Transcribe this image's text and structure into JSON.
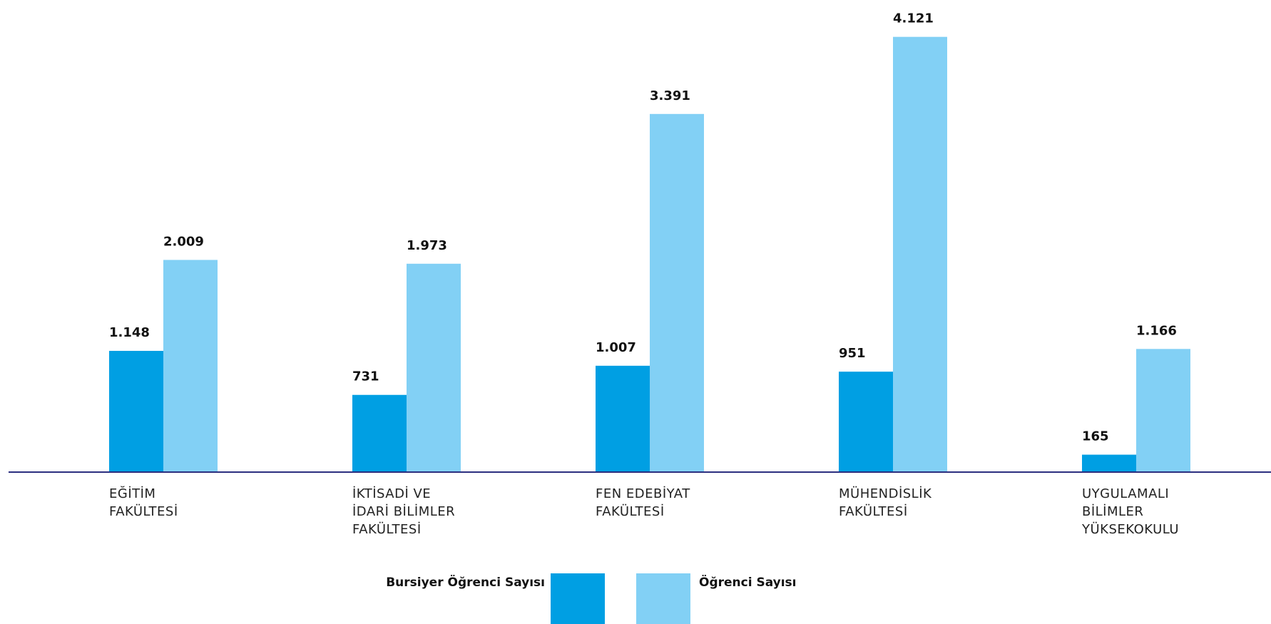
{
  "chart_data": {
    "type": "bar",
    "categories": [
      [
        "EĞİTİM",
        "FAKÜLTESİ"
      ],
      [
        "İKTİSADİ VE",
        "İDARİ BİLİMLER",
        "FAKÜLTESİ"
      ],
      [
        "FEN EDEBİYAT",
        "FAKÜLTESİ"
      ],
      [
        "MÜHENDİSLİK",
        "FAKÜLTESİ"
      ],
      [
        "UYGULAMALI",
        "BİLİMLER",
        "YÜKSEKOKULU"
      ]
    ],
    "series": [
      {
        "name": "Bursiyer Öğrenci Sayısı",
        "color": "#009FE3",
        "values": [
          1148,
          731,
          1007,
          951,
          165
        ],
        "labels": [
          "1.148",
          "731",
          "1.007",
          "951",
          "165"
        ]
      },
      {
        "name": "Öğrenci Sayısı",
        "color": "#82D0F5",
        "values": [
          2009,
          1973,
          3391,
          4121,
          1166
        ],
        "labels": [
          "2.009",
          "1.973",
          "3.391",
          "4.121",
          "1.166"
        ]
      }
    ],
    "title": "",
    "xlabel": "",
    "ylabel": "",
    "ylim": [
      0,
      4200
    ],
    "grid": false,
    "baseline_color": "#2B2F7F",
    "legend_position": "bottom-center"
  }
}
